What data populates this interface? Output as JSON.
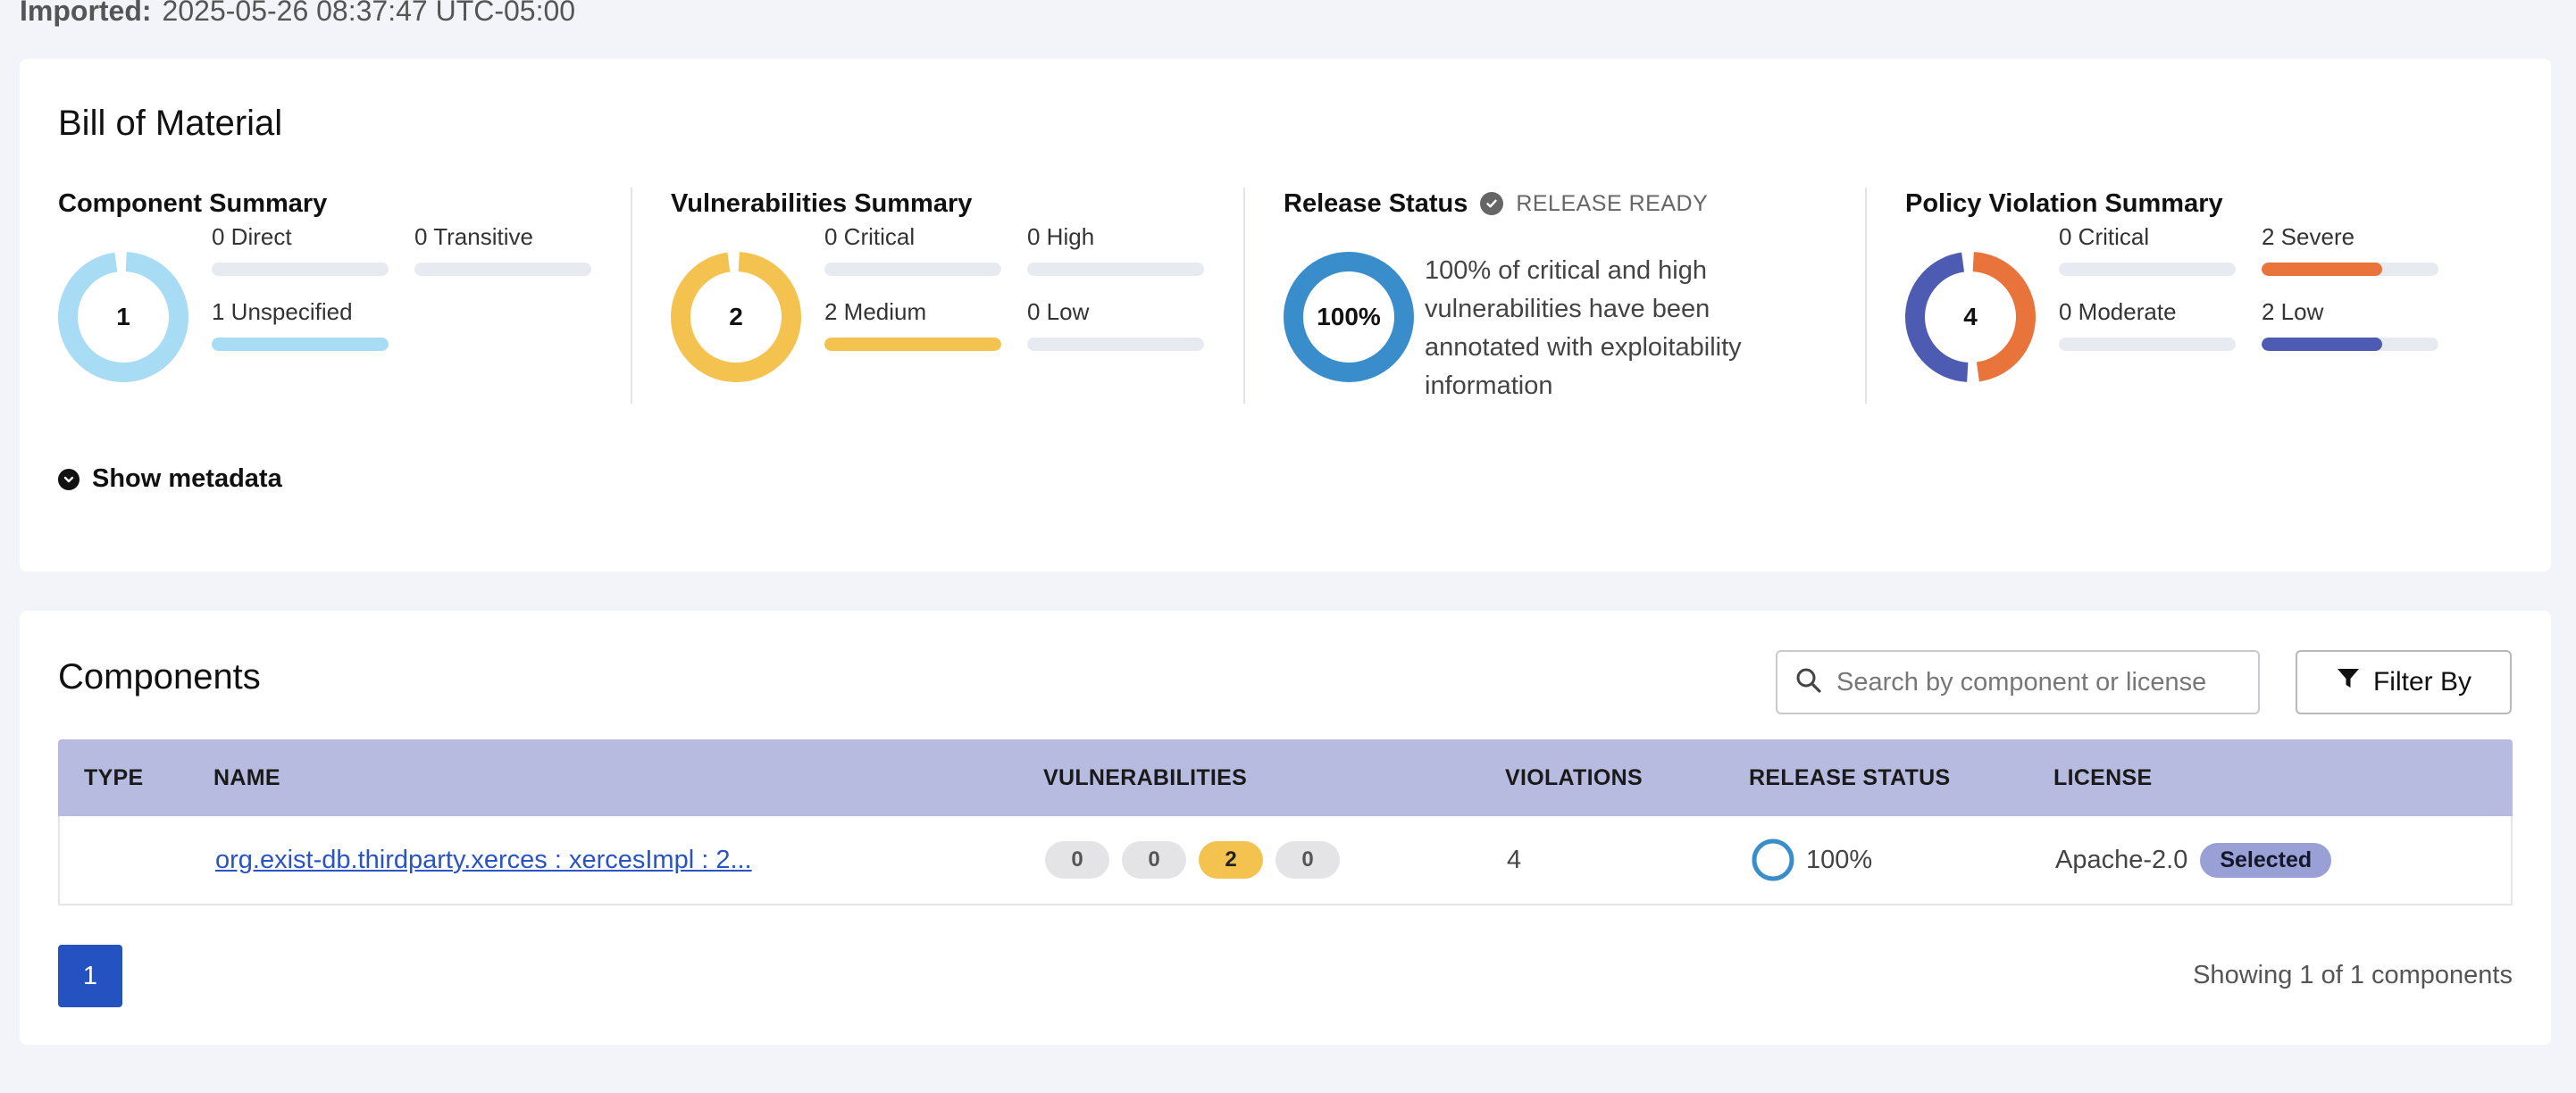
{
  "imported": {
    "label": "Imported:",
    "value": "2025-05-26 08:37:47 UTC-05:00"
  },
  "bom": {
    "title": "Bill of Material",
    "component_summary": {
      "title": "Component Summary",
      "total": "1",
      "stats": [
        {
          "label": "0 Direct",
          "fraction": 0
        },
        {
          "label": "0 Transitive",
          "fraction": 0
        },
        {
          "label": "1 Unspecified",
          "fraction": 1
        }
      ],
      "color": "#a8dcf5"
    },
    "vulnerabilities_summary": {
      "title": "Vulnerabilities Summary",
      "total": "2",
      "stats": [
        {
          "label": "0 Critical",
          "fraction": 0
        },
        {
          "label": "0 High",
          "fraction": 0
        },
        {
          "label": "2 Medium",
          "fraction": 1
        },
        {
          "label": "0 Low",
          "fraction": 0
        }
      ],
      "color": "#f4c24e"
    },
    "release_status": {
      "title": "Release Status",
      "tag": "RELEASE READY",
      "percent": "100%",
      "description": "100% of critical and high vulnerabilities have been annotated with exploitability information",
      "color": "#3a8dcb"
    },
    "policy_violation_summary": {
      "title": "Policy Violation Summary",
      "total": "4",
      "stats": [
        {
          "label": "0 Critical",
          "fraction": 0
        },
        {
          "label": "2 Severe",
          "fraction": 0.7
        },
        {
          "label": "0 Moderate",
          "fraction": 0
        },
        {
          "label": "2 Low",
          "fraction": 0.7
        }
      ],
      "colors": {
        "severe": "#e8743b",
        "low": "#4e5bb3"
      }
    },
    "show_metadata": "Show metadata"
  },
  "components": {
    "title": "Components",
    "search_placeholder": "Search by component or license",
    "filter_label": "Filter By",
    "columns": [
      "TYPE",
      "NAME",
      "VULNERABILITIES",
      "VIOLATIONS",
      "RELEASE STATUS",
      "LICENSE"
    ],
    "rows": [
      {
        "type": "",
        "name": "org.exist-db.thirdparty.xerces : xercesImpl : 2...",
        "vulns": [
          "0",
          "0",
          "2",
          "0"
        ],
        "violations": "4",
        "release_status": "100%",
        "license": "Apache-2.0",
        "license_badge": "Selected"
      }
    ],
    "pagination": {
      "current": "1"
    },
    "showing": "Showing 1 of 1 components"
  }
}
